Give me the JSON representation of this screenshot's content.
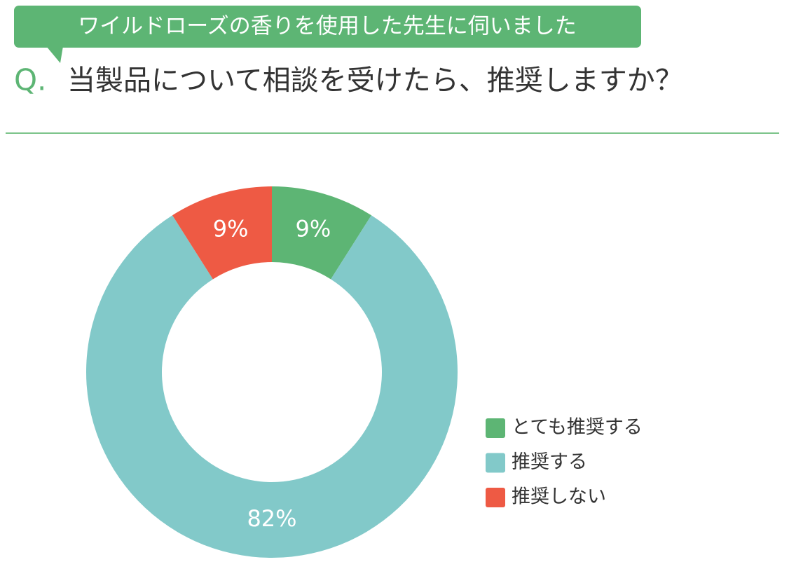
{
  "chart_data": {
    "type": "pie",
    "subtitle": "ワイルドローズの香りを使用した先生に伺いました",
    "question_label": "Q.",
    "title": "当製品について相談を受けたら、推奨しますか？",
    "categories": [
      "とても推奨する",
      "推奨する",
      "推奨しない"
    ],
    "values": [
      9,
      82,
      9
    ],
    "value_labels": [
      "9%",
      "82%",
      "9%"
    ],
    "colors": [
      "#5db574",
      "#82c9c9",
      "#ee5a44"
    ]
  }
}
